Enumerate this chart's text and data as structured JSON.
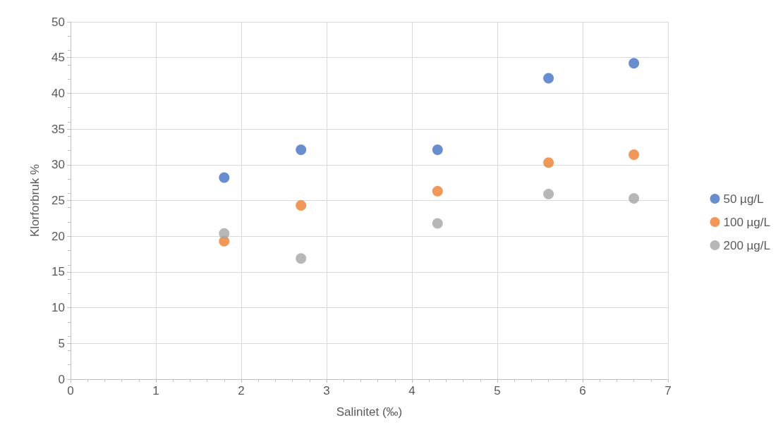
{
  "chart_data": {
    "type": "scatter",
    "xlabel": "Salinitet (‰)",
    "ylabel": "Klorforbruk %",
    "x": [
      1.8,
      2.7,
      4.3,
      5.6,
      6.6
    ],
    "series": [
      {
        "name": "50 µg/L",
        "color": "#4472c4",
        "values": [
          28.2,
          32.1,
          32.1,
          42.1,
          44.2
        ]
      },
      {
        "name": "100 µg/L",
        "color": "#ed7d31",
        "values": [
          19.3,
          24.3,
          26.3,
          30.3,
          31.4
        ]
      },
      {
        "name": "200 µg/L",
        "color": "#a5a5a5",
        "values": [
          20.4,
          16.9,
          21.8,
          25.9,
          25.3
        ]
      }
    ],
    "xlim": [
      0,
      7
    ],
    "xticks": [
      0,
      1,
      2,
      3,
      4,
      5,
      6,
      7
    ],
    "ylim": [
      0,
      50
    ],
    "yticks": [
      0,
      5,
      10,
      15,
      20,
      25,
      30,
      35,
      40,
      45,
      50
    ],
    "grid": true,
    "legend": "right",
    "marker": "circle"
  }
}
